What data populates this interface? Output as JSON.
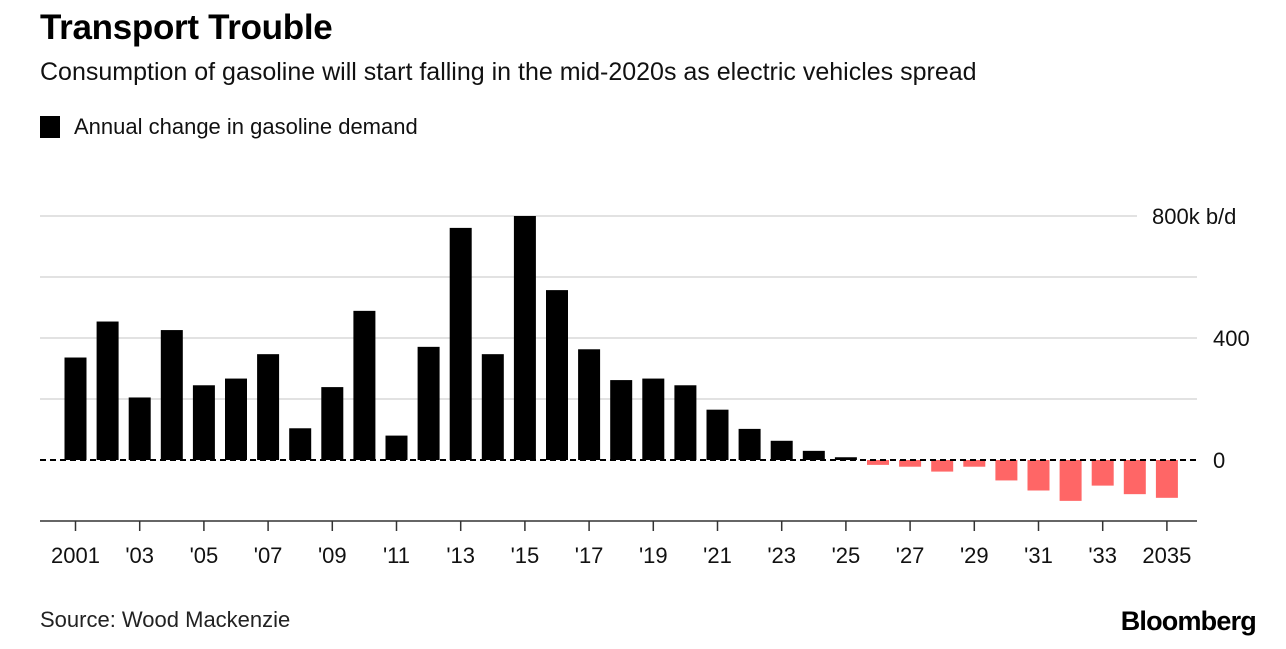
{
  "chart_data": {
    "type": "bar",
    "title": "Transport Trouble",
    "subtitle": "Consumption of gasoline will start falling in the mid-2020s as electric vehicles spread",
    "legend": [
      {
        "name": "Annual change in gasoline demand",
        "color": "#000000"
      }
    ],
    "legend_position": "top-left",
    "xlabel": "",
    "ylabel": "",
    "categories": [
      "2001",
      "2002",
      "2003",
      "2004",
      "2005",
      "2006",
      "2007",
      "2008",
      "2009",
      "2010",
      "2011",
      "2012",
      "2013",
      "2014",
      "2015",
      "2016",
      "2017",
      "2018",
      "2019",
      "2020",
      "2021",
      "2022",
      "2023",
      "2024",
      "2025",
      "2026",
      "2027",
      "2028",
      "2029",
      "2030",
      "2031",
      "2032",
      "2033",
      "2034",
      "2035"
    ],
    "values": [
      336,
      454,
      205,
      426,
      245,
      267,
      347,
      104,
      239,
      489,
      80,
      371,
      761,
      347,
      800,
      557,
      363,
      262,
      267,
      245,
      165,
      102,
      63,
      30,
      9,
      -16,
      -22,
      -38,
      -22,
      -67,
      -100,
      -134,
      -84,
      -112,
      -124
    ],
    "positive_color": "#000000",
    "negative_color": "#ff6666",
    "ylim": [
      -200,
      800
    ],
    "yticks": [
      {
        "value": 800,
        "label": "800k b/d"
      },
      {
        "value": 600,
        "label": ""
      },
      {
        "value": 400,
        "label": "400"
      },
      {
        "value": 200,
        "label": ""
      },
      {
        "value": 0,
        "label": "0"
      }
    ],
    "xticks": [
      {
        "category": "2001",
        "label": "2001"
      },
      {
        "category": "2003",
        "label": "'03"
      },
      {
        "category": "2005",
        "label": "'05"
      },
      {
        "category": "2007",
        "label": "'07"
      },
      {
        "category": "2009",
        "label": "'09"
      },
      {
        "category": "2011",
        "label": "'11"
      },
      {
        "category": "2013",
        "label": "'13"
      },
      {
        "category": "2015",
        "label": "'15"
      },
      {
        "category": "2017",
        "label": "'17"
      },
      {
        "category": "2019",
        "label": "'19"
      },
      {
        "category": "2021",
        "label": "'21"
      },
      {
        "category": "2023",
        "label": "'23"
      },
      {
        "category": "2025",
        "label": "'25"
      },
      {
        "category": "2027",
        "label": "'27"
      },
      {
        "category": "2029",
        "label": "'29"
      },
      {
        "category": "2031",
        "label": "'31"
      },
      {
        "category": "2033",
        "label": "'33"
      },
      {
        "category": "2035",
        "label": "2035"
      }
    ],
    "grid": true,
    "zero_line": "dashed"
  },
  "footer": {
    "source": "Source: Wood Mackenzie",
    "brand": "Bloomberg"
  }
}
